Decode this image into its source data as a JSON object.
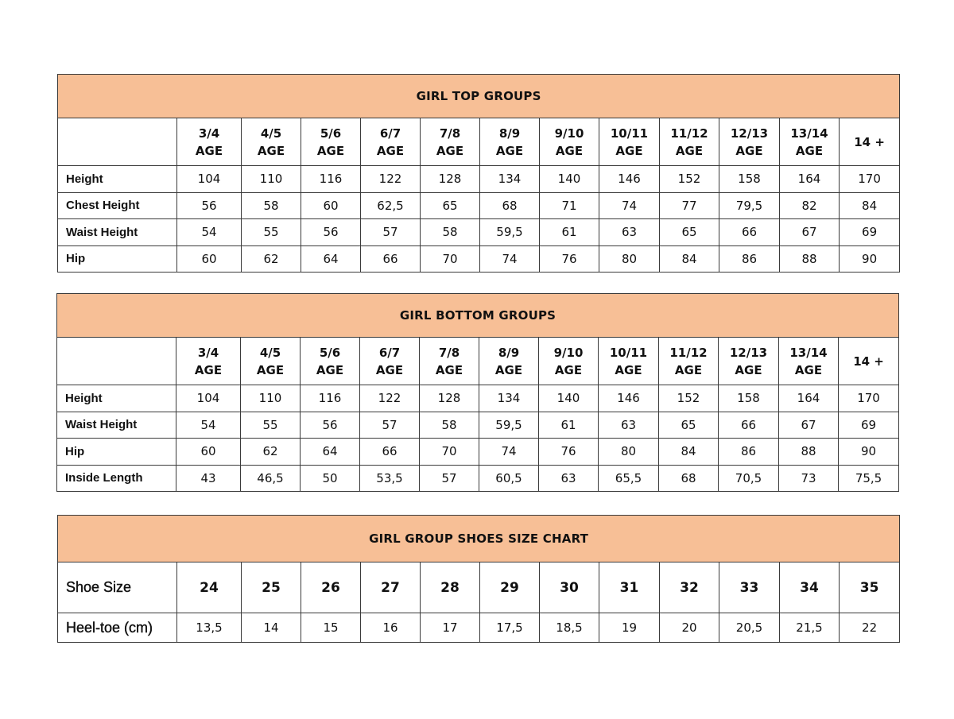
{
  "colors": {
    "header_fill": "#f7bf96",
    "border": "#3a3a3a"
  },
  "top": {
    "title": "GIRL TOP GROUPS",
    "columns": [
      [
        "3/4",
        "AGE"
      ],
      [
        "4/5",
        "AGE"
      ],
      [
        "5/6",
        "AGE"
      ],
      [
        "6/7",
        "AGE"
      ],
      [
        "7/8",
        "AGE"
      ],
      [
        "8/9",
        "AGE"
      ],
      [
        "9/10",
        "AGE"
      ],
      [
        "10/11",
        "AGE"
      ],
      [
        "11/12",
        "AGE"
      ],
      [
        "12/13",
        "AGE"
      ],
      [
        "13/14",
        "AGE"
      ],
      [
        "14 +"
      ]
    ],
    "rows": [
      {
        "label": "Height",
        "values": [
          "104",
          "110",
          "116",
          "122",
          "128",
          "134",
          "140",
          "146",
          "152",
          "158",
          "164",
          "170"
        ]
      },
      {
        "label": "Chest Height",
        "values": [
          "56",
          "58",
          "60",
          "62,5",
          "65",
          "68",
          "71",
          "74",
          "77",
          "79,5",
          "82",
          "84"
        ]
      },
      {
        "label": "Waist Height",
        "values": [
          "54",
          "55",
          "56",
          "57",
          "58",
          "59,5",
          "61",
          "63",
          "65",
          "66",
          "67",
          "69"
        ]
      },
      {
        "label": "Hip",
        "values": [
          "60",
          "62",
          "64",
          "66",
          "70",
          "74",
          "76",
          "80",
          "84",
          "86",
          "88",
          "90"
        ]
      }
    ]
  },
  "bottom": {
    "title": "GIRL BOTTOM GROUPS",
    "columns": [
      [
        "3/4",
        "AGE"
      ],
      [
        "4/5",
        "AGE"
      ],
      [
        "5/6",
        "AGE"
      ],
      [
        "6/7",
        "AGE"
      ],
      [
        "7/8",
        "AGE"
      ],
      [
        "8/9",
        "AGE"
      ],
      [
        "9/10",
        "AGE"
      ],
      [
        "10/11",
        "AGE"
      ],
      [
        "11/12",
        "AGE"
      ],
      [
        "12/13",
        "AGE"
      ],
      [
        "13/14",
        "AGE"
      ],
      [
        "14 +"
      ]
    ],
    "rows": [
      {
        "label": "Height",
        "values": [
          "104",
          "110",
          "116",
          "122",
          "128",
          "134",
          "140",
          "146",
          "152",
          "158",
          "164",
          "170"
        ]
      },
      {
        "label": "Waist Height",
        "values": [
          "54",
          "55",
          "56",
          "57",
          "58",
          "59,5",
          "61",
          "63",
          "65",
          "66",
          "67",
          "69"
        ]
      },
      {
        "label": "Hip",
        "values": [
          "60",
          "62",
          "64",
          "66",
          "70",
          "74",
          "76",
          "80",
          "84",
          "86",
          "88",
          "90"
        ]
      },
      {
        "label": "Inside Length",
        "values": [
          "43",
          "46,5",
          "50",
          "53,5",
          "57",
          "60,5",
          "63",
          "65,5",
          "68",
          "70,5",
          "73",
          "75,5"
        ]
      }
    ]
  },
  "shoes": {
    "title": "GIRL GROUP SHOES SIZE CHART",
    "size_row": {
      "label": "Shoe Size",
      "values": [
        "24",
        "25",
        "26",
        "27",
        "28",
        "29",
        "30",
        "31",
        "32",
        "33",
        "34",
        "35"
      ]
    },
    "heel_row": {
      "label": "Heel-toe (cm)",
      "values": [
        "13,5",
        "14",
        "15",
        "16",
        "17",
        "17,5",
        "18,5",
        "19",
        "20",
        "20,5",
        "21,5",
        "22"
      ]
    }
  }
}
